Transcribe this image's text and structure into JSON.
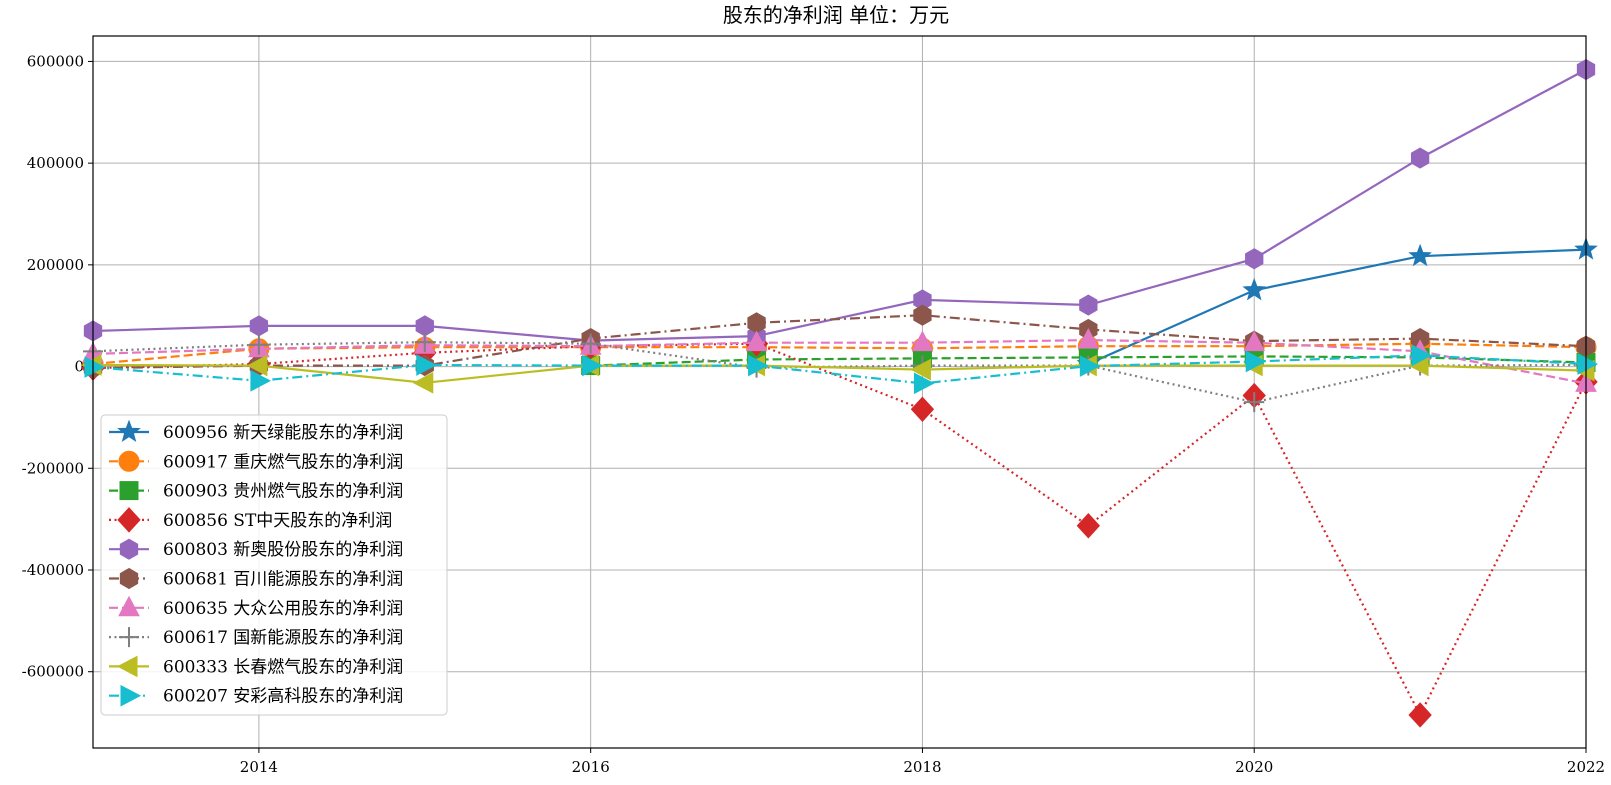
{
  "chart_data": {
    "type": "line",
    "title": "股东的净利润 单位：万元",
    "xlabel": "",
    "ylabel": "",
    "x": [
      2013,
      2014,
      2015,
      2016,
      2017,
      2018,
      2019,
      2020,
      2021,
      2022
    ],
    "xlim": [
      2013,
      2022
    ],
    "ylim": [
      -750000,
      650000
    ],
    "xticks": [
      2014,
      2016,
      2018,
      2020,
      2022
    ],
    "yticks": [
      600000,
      400000,
      200000,
      0,
      -200000,
      -400000,
      -600000
    ],
    "grid": true,
    "legend_position": "lower-left",
    "series": [
      {
        "name": "600956 新天绿能股东的净利润",
        "color": "#1f77b4",
        "marker": "star",
        "dash": "solid",
        "values": [
          null,
          null,
          null,
          null,
          null,
          null,
          5000,
          150000,
          217000,
          230000
        ]
      },
      {
        "name": "600917 重庆燃气股东的净利润",
        "color": "#ff7f0e",
        "marker": "circle",
        "dash": "dashed",
        "values": [
          5000,
          35000,
          38000,
          38000,
          38000,
          36000,
          40000,
          40000,
          45000,
          38000
        ]
      },
      {
        "name": "600903 贵州燃气股东的净利润",
        "color": "#2ca02c",
        "marker": "square",
        "dash": "dashed",
        "values": [
          null,
          null,
          null,
          2000,
          14000,
          16000,
          18000,
          20000,
          18000,
          8000
        ]
      },
      {
        "name": "600856 ST中天股东的净利润",
        "color": "#d62728",
        "marker": "diamond",
        "dash": "dotted",
        "values": [
          -3000,
          5000,
          27000,
          40000,
          45000,
          -84000,
          -313000,
          -57000,
          -685000,
          -30000
        ]
      },
      {
        "name": "600803 新奥股份股东的净利润",
        "color": "#9467bd",
        "marker": "hexagon",
        "dash": "solid",
        "values": [
          70000,
          80000,
          80000,
          51000,
          60000,
          131000,
          121000,
          212000,
          410000,
          584000
        ]
      },
      {
        "name": "600681 百川能源股东的净利润",
        "color": "#8c564b",
        "marker": "hexagon",
        "dash": "dashdot",
        "values": [
          -3000,
          2000,
          2000,
          55000,
          86000,
          101000,
          73000,
          50000,
          55000,
          40000
        ]
      },
      {
        "name": "600635 大众公用股东的净利润",
        "color": "#e377c2",
        "marker": "triangle-up",
        "dash": "dashed",
        "values": [
          25000,
          35000,
          42000,
          40000,
          47000,
          47000,
          52000,
          47000,
          30000,
          -33000
        ]
      },
      {
        "name": "600617 国新能源股东的净利润",
        "color": "#7f7f7f",
        "marker": "plus",
        "dash": "dotted",
        "values": [
          30000,
          43000,
          48000,
          45000,
          -2000,
          2000,
          2000,
          -70000,
          2000,
          3000
        ]
      },
      {
        "name": "600333 长春燃气股东的净利润",
        "color": "#bcbd22",
        "marker": "triangle-left",
        "dash": "solid",
        "values": [
          3000,
          2000,
          -32000,
          2000,
          2000,
          -6000,
          2000,
          2000,
          2000,
          -8000
        ]
      },
      {
        "name": "600207 安彩高科股东的净利润",
        "color": "#17becf",
        "marker": "triangle-right",
        "dash": "dashdot",
        "values": [
          -1000,
          -28000,
          3000,
          2000,
          2000,
          -33000,
          1000,
          10000,
          22000,
          5000
        ]
      }
    ]
  }
}
